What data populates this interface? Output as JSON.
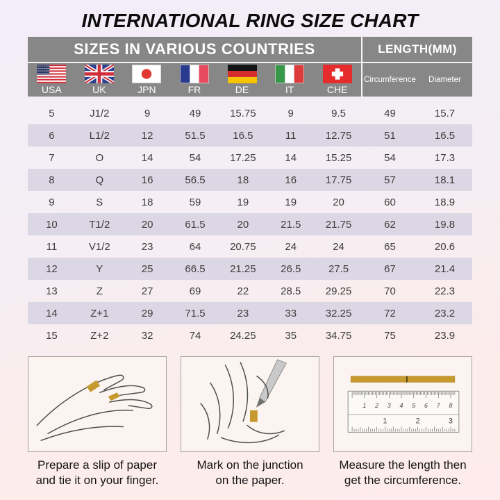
{
  "title": "INTERNATIONAL RING SIZE CHART",
  "table": {
    "header_left": "SIZES IN VARIOUS COUNTRIES",
    "header_right": "LENGTH(MM)",
    "length_columns": [
      "Circumference",
      "Diameter"
    ],
    "countries": [
      {
        "code": "usa",
        "label": "USA",
        "flag_icon": "usa-flag-icon"
      },
      {
        "code": "uk",
        "label": "UK",
        "flag_icon": "uk-flag-icon"
      },
      {
        "code": "jpn",
        "label": "JPN",
        "flag_icon": "japan-flag-icon"
      },
      {
        "code": "fr",
        "label": "FR",
        "flag_icon": "france-flag-icon"
      },
      {
        "code": "de",
        "label": "DE",
        "flag_icon": "germany-flag-icon"
      },
      {
        "code": "it",
        "label": "IT",
        "flag_icon": "italy-flag-icon"
      },
      {
        "code": "che",
        "label": "CHE",
        "flag_icon": "switzerland-flag-icon"
      }
    ]
  },
  "chart_data": {
    "type": "table",
    "title": "INTERNATIONAL RING SIZE CHART",
    "column_groups": [
      "SIZES IN VARIOUS COUNTRIES",
      "LENGTH(MM)"
    ],
    "columns": [
      "USA",
      "UK",
      "JPN",
      "FR",
      "DE",
      "IT",
      "CHE",
      "Circumference",
      "Diameter"
    ],
    "rows": [
      [
        "5",
        "J1/2",
        "9",
        "49",
        "15.75",
        "9",
        "9.5",
        "49",
        "15.7"
      ],
      [
        "6",
        "L1/2",
        "12",
        "51.5",
        "16.5",
        "11",
        "12.75",
        "51",
        "16.5"
      ],
      [
        "7",
        "O",
        "14",
        "54",
        "17.25",
        "14",
        "15.25",
        "54",
        "17.3"
      ],
      [
        "8",
        "Q",
        "16",
        "56.5",
        "18",
        "16",
        "17.75",
        "57",
        "18.1"
      ],
      [
        "9",
        "S",
        "18",
        "59",
        "19",
        "19",
        "20",
        "60",
        "18.9"
      ],
      [
        "10",
        "T1/2",
        "20",
        "61.5",
        "20",
        "21.5",
        "21.75",
        "62",
        "19.8"
      ],
      [
        "11",
        "V1/2",
        "23",
        "64",
        "20.75",
        "24",
        "24",
        "65",
        "20.6"
      ],
      [
        "12",
        "Y",
        "25",
        "66.5",
        "21.25",
        "26.5",
        "27.5",
        "67",
        "21.4"
      ],
      [
        "13",
        "Z",
        "27",
        "69",
        "22",
        "28.5",
        "29.25",
        "70",
        "22.3"
      ],
      [
        "14",
        "Z+1",
        "29",
        "71.5",
        "23",
        "33",
        "32.25",
        "72",
        "23.2"
      ],
      [
        "15",
        "Z+2",
        "32",
        "74",
        "24.25",
        "35",
        "34.75",
        "75",
        "23.9"
      ]
    ]
  },
  "instructions": [
    {
      "icon": "hand-with-paper-illustration",
      "lines": [
        "Prepare a slip of paper",
        "and tie it on your finger."
      ]
    },
    {
      "icon": "mark-junction-illustration",
      "lines": [
        "Mark on the junction",
        "on the paper."
      ]
    },
    {
      "icon": "ruler-illustration",
      "lines": [
        "Measure the length then",
        "get the circumference."
      ],
      "ruler_cm_numbers": [
        "1",
        "2",
        "3",
        "4",
        "5",
        "6",
        "7",
        "8"
      ],
      "ruler_inch_numbers": [
        "1",
        "2",
        "3"
      ]
    }
  ],
  "colors": {
    "header_gray": "#878787",
    "row_shade": "#dcd7e4",
    "background_top": "#f2edf9",
    "background_bottom": "#fdeceb",
    "paper_gold": "#c79a2f",
    "title_black": "#0c0c0c",
    "table_text": "#3d3d3d"
  }
}
